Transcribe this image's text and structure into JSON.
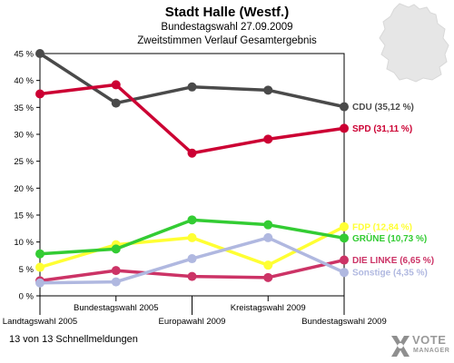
{
  "header": {
    "title": "Stadt Halle (Westf.)",
    "subtitle1": "Bundestagswahl 27.09.2009",
    "subtitle2": "Zweitstimmen Verlauf Gesamtergebnis"
  },
  "footer": {
    "note": "13 von 13 Schnellmeldungen"
  },
  "logo": {
    "text": "VOTE",
    "sub": "MANAGER",
    "icon": "vote-x-icon"
  },
  "decoration": {
    "map": "germany-map-icon"
  },
  "chart_data": {
    "type": "line",
    "categories": [
      "Landtagswahl 2005",
      "Bundestagswahl 2005",
      "Europawahl 2009",
      "Kreistagswahl 2009",
      "Bundestagswahl 2009"
    ],
    "ylim": [
      0,
      45
    ],
    "yticks": [
      0,
      5,
      10,
      15,
      20,
      25,
      30,
      35,
      40,
      45
    ],
    "ytick_labels": [
      "0 %",
      "5 %",
      "10 %",
      "15 %",
      "20 %",
      "25 %",
      "30 %",
      "35 %",
      "40 %",
      "45 %"
    ],
    "grid": false,
    "series": [
      {
        "name": "CDU",
        "label": "CDU (35,12 %)",
        "color": "#4a4a4a",
        "values": [
          45,
          35.8,
          38.8,
          38.2,
          35.12
        ]
      },
      {
        "name": "SPD",
        "label": "SPD (31,11 %)",
        "color": "#cc0033",
        "values": [
          37.5,
          39.2,
          26.5,
          29.1,
          31.11
        ]
      },
      {
        "name": "FDP",
        "label": "FDP (12,84 %)",
        "color": "#ffff33",
        "values": [
          5.3,
          9.5,
          10.8,
          5.7,
          12.84
        ]
      },
      {
        "name": "GRÜNE",
        "label": "GRÜNE (10,73 %)",
        "color": "#33cc33",
        "values": [
          7.8,
          8.7,
          14.1,
          13.2,
          10.73
        ]
      },
      {
        "name": "DIE LINKE",
        "label": "DIE LINKE (6,65 %)",
        "color": "#cc3366",
        "values": [
          2.8,
          4.7,
          3.6,
          3.4,
          6.65
        ]
      },
      {
        "name": "Sonstige",
        "label": "Sonstige (4,35 %)",
        "color": "#b0b8e0",
        "values": [
          2.4,
          2.6,
          6.9,
          10.8,
          4.35
        ]
      }
    ]
  }
}
